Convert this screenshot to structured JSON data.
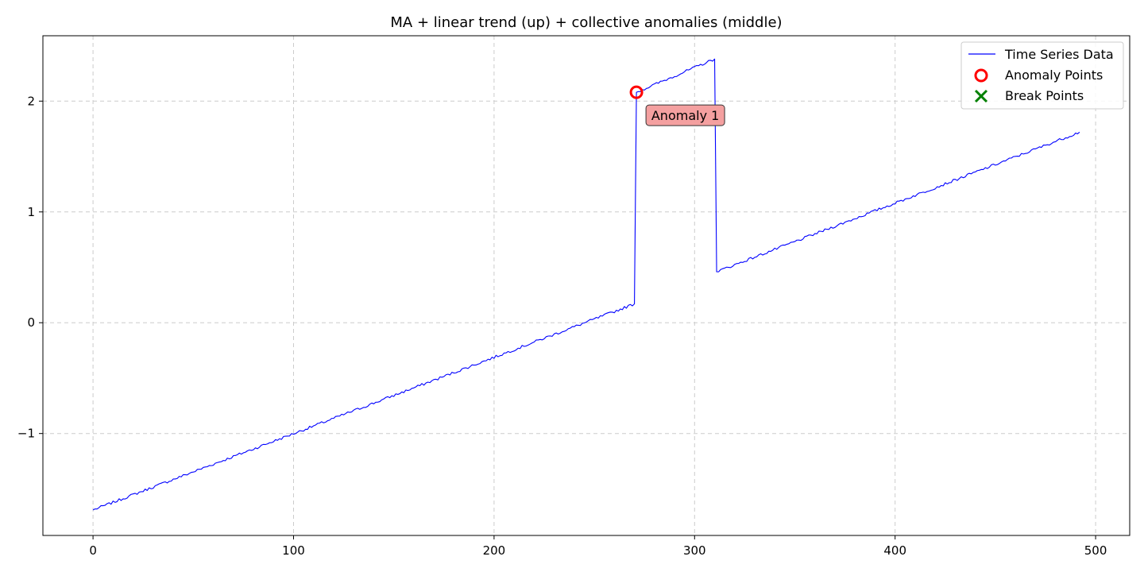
{
  "chart_data": {
    "type": "line",
    "title": "MA + linear trend (up) + collective anomalies (middle)",
    "xlabel": "",
    "ylabel": "",
    "xlim": [
      -25,
      517
    ],
    "ylim": [
      -1.92,
      2.59
    ],
    "x_ticks": [
      0,
      100,
      200,
      300,
      400,
      500
    ],
    "x_tick_labels": [
      "0",
      "100",
      "200",
      "300",
      "400",
      "500"
    ],
    "y_ticks": [
      -1,
      0,
      1,
      2
    ],
    "y_tick_labels": [
      "−1",
      "0",
      "1",
      "2"
    ],
    "grid": true,
    "legend_position": "top-right",
    "legend": [
      {
        "label": "Time Series Data",
        "kind": "line",
        "color": "#0000ff"
      },
      {
        "label": "Anomaly Points",
        "kind": "circle",
        "color": "#ff0000"
      },
      {
        "label": "Break Points",
        "kind": "x",
        "color": "#008000"
      }
    ],
    "series": [
      {
        "name": "Time Series Data",
        "color": "#0000ff",
        "segments": [
          {
            "x_start": 0,
            "x_end": 270,
            "y_start": -1.69,
            "y_end": 0.17
          },
          {
            "x_start": 271,
            "x_end": 310,
            "y_start": 2.08,
            "y_end": 2.38
          },
          {
            "x_start": 311,
            "x_end": 492,
            "y_start": 0.46,
            "y_end": 1.72
          }
        ],
        "noise_amplitude": 0.012
      }
    ],
    "anomaly_points": [
      {
        "x": 271,
        "y": 2.08,
        "label": "Anomaly 1"
      }
    ],
    "break_points": [],
    "colors": {
      "line": "#0000ff",
      "anomaly": "#ff0000",
      "annotation_fill": "#f4a0a0",
      "break": "#008000",
      "grid": "#cccccc"
    }
  }
}
